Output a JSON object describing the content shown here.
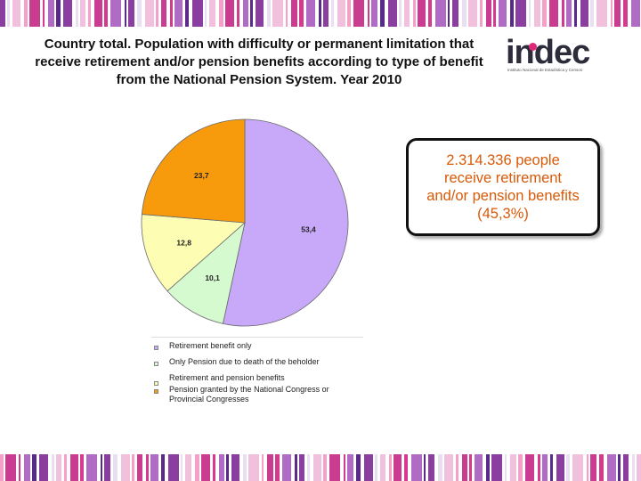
{
  "title": "Country total. Population with difficulty or permanent limitation that receive retirement and/or pension benefits  according to type of benefit from the National Pension System. Year 2010",
  "logo": {
    "text": "indec",
    "subtitle": "Instituto Nacional de Estadística y Censos",
    "brand_color": "#e0287a"
  },
  "callout": {
    "text": "2.314.336 people receive  retirement and/or pension benefits (45,3%)",
    "color": "#d85a08"
  },
  "chart_data": {
    "type": "pie",
    "title": "",
    "start_angle_deg": 0,
    "direction": "clockwise",
    "slices": [
      {
        "label": "Retirement benefit only",
        "value": 53.4,
        "display": "53,4",
        "color": "#c8a8f8"
      },
      {
        "label": "Only Pension due to death of the beholder",
        "value": 10.1,
        "display": "10,1",
        "color": "#d6fad0"
      },
      {
        "label": "Retirement and pension benefits",
        "value": 12.8,
        "display": "12,8",
        "color": "#fdfdb4"
      },
      {
        "label": "Pension granted by the National  Congress or Provincial Congresses",
        "value": 23.7,
        "display": "23,7",
        "color": "#f79a0c"
      }
    ],
    "legend_position": "bottom-left"
  },
  "decor": {
    "stripe_colors": [
      "#8a3ea0",
      "#d63a8c",
      "#f0c0dc",
      "#5a2a8a",
      "#c93c90",
      "#e8e0f0",
      "#b06cc4",
      "#f4a0c8"
    ]
  }
}
